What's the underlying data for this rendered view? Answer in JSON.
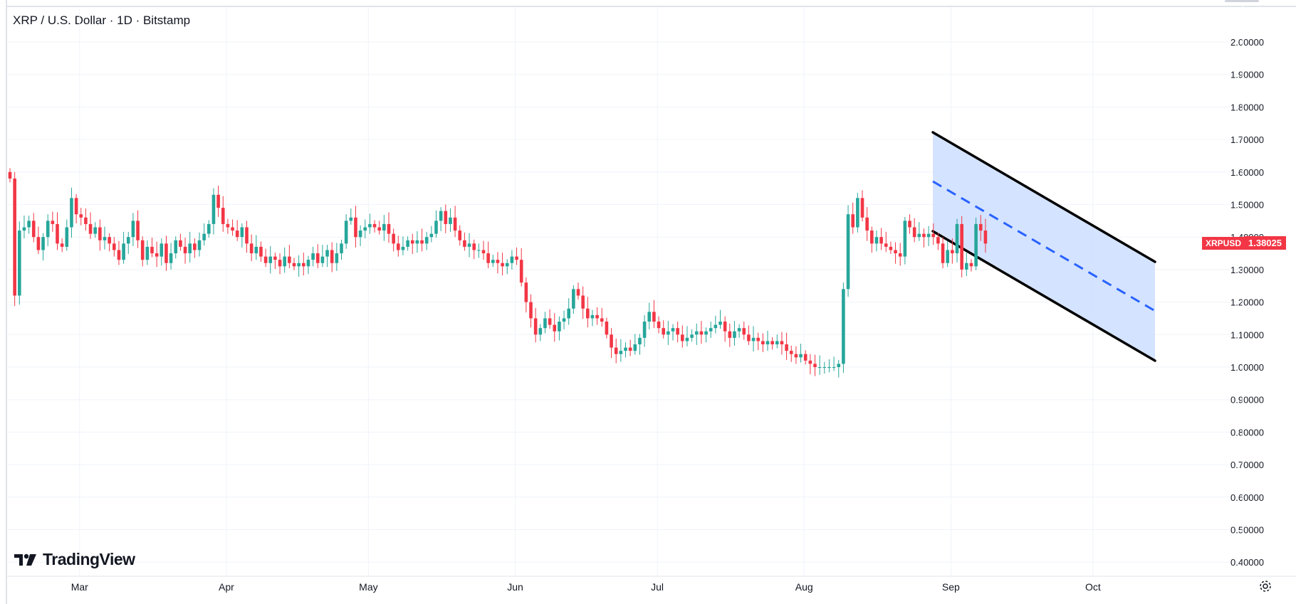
{
  "header": {
    "title": "XRP / U.S. Dollar · 1D · Bitstamp"
  },
  "branding": {
    "logo_text": "TradingView"
  },
  "price_tag": {
    "symbol": "XRPUSD",
    "value": "1.38025"
  },
  "colors": {
    "up": "#26a69a",
    "down": "#f23645",
    "channel_fill": "#cfe0ff",
    "channel_line": "#000000",
    "midline": "#2962ff",
    "grid": "#f0f3fa"
  },
  "chart_data": {
    "type": "candlestick",
    "symbol": "XRPUSD",
    "interval": "1D",
    "exchange": "Bitstamp",
    "y_axis": {
      "range": [
        0.37,
        2.07
      ],
      "ticks": [
        "2.00000",
        "1.90000",
        "1.80000",
        "1.70000",
        "1.60000",
        "1.50000",
        "1.40000",
        "1.30000",
        "1.20000",
        "1.10000",
        "1.00000",
        "0.90000",
        "0.80000",
        "0.70000",
        "0.60000",
        "0.50000",
        "0.40000"
      ]
    },
    "x_axis": {
      "ticks": [
        {
          "label": "Mar",
          "date": "2025-03-01"
        },
        {
          "label": "Apr",
          "date": "2025-04-01"
        },
        {
          "label": "May",
          "date": "2025-05-01"
        },
        {
          "label": "Jun",
          "date": "2025-06-01"
        },
        {
          "label": "Jul",
          "date": "2025-07-01"
        },
        {
          "label": "Aug",
          "date": "2025-08-01"
        },
        {
          "label": "Sep",
          "date": "2025-09-01"
        },
        {
          "label": "Oct",
          "date": "2025-10-01"
        }
      ]
    },
    "last_price": 1.38025,
    "grid": true,
    "closes": [
      1.58,
      1.22,
      1.42,
      1.43,
      1.45,
      1.4,
      1.36,
      1.4,
      1.45,
      1.44,
      1.38,
      1.37,
      1.43,
      1.52,
      1.47,
      1.46,
      1.44,
      1.41,
      1.43,
      1.39,
      1.4,
      1.38,
      1.36,
      1.33,
      1.38,
      1.4,
      1.45,
      1.39,
      1.33,
      1.37,
      1.35,
      1.34,
      1.38,
      1.32,
      1.35,
      1.39,
      1.37,
      1.35,
      1.38,
      1.36,
      1.39,
      1.41,
      1.44,
      1.53,
      1.49,
      1.44,
      1.43,
      1.42,
      1.4,
      1.43,
      1.38,
      1.35,
      1.37,
      1.34,
      1.32,
      1.34,
      1.33,
      1.31,
      1.34,
      1.32,
      1.31,
      1.32,
      1.31,
      1.33,
      1.35,
      1.32,
      1.34,
      1.36,
      1.32,
      1.35,
      1.38,
      1.45,
      1.46,
      1.4,
      1.42,
      1.43,
      1.44,
      1.43,
      1.42,
      1.44,
      1.41,
      1.38,
      1.36,
      1.37,
      1.39,
      1.38,
      1.39,
      1.38,
      1.4,
      1.41,
      1.45,
      1.48,
      1.44,
      1.46,
      1.42,
      1.39,
      1.37,
      1.38,
      1.36,
      1.36,
      1.35,
      1.32,
      1.33,
      1.32,
      1.31,
      1.32,
      1.34,
      1.33,
      1.26,
      1.2,
      1.15,
      1.1,
      1.12,
      1.15,
      1.13,
      1.11,
      1.14,
      1.15,
      1.18,
      1.24,
      1.22,
      1.18,
      1.15,
      1.16,
      1.15,
      1.14,
      1.1,
      1.06,
      1.04,
      1.05,
      1.06,
      1.05,
      1.07,
      1.09,
      1.14,
      1.17,
      1.14,
      1.12,
      1.1,
      1.11,
      1.12,
      1.1,
      1.08,
      1.09,
      1.1,
      1.11,
      1.1,
      1.11,
      1.12,
      1.13,
      1.14,
      1.11,
      1.09,
      1.11,
      1.12,
      1.1,
      1.08,
      1.09,
      1.08,
      1.07,
      1.08,
      1.07,
      1.08,
      1.07,
      1.05,
      1.04,
      1.03,
      1.04,
      1.02,
      1.01,
      1.0,
      1.0,
      1.0,
      1.0,
      1.0,
      1.01,
      1.24,
      1.47,
      1.43,
      1.52,
      1.46,
      1.42,
      1.38,
      1.4,
      1.38,
      1.37,
      1.36,
      1.35,
      1.34,
      1.45,
      1.43,
      1.4,
      1.41,
      1.4,
      1.41,
      1.4,
      1.38,
      1.32,
      1.36,
      1.35,
      1.44,
      1.3,
      1.32,
      1.31,
      1.44,
      1.42,
      1.38
    ]
  }
}
